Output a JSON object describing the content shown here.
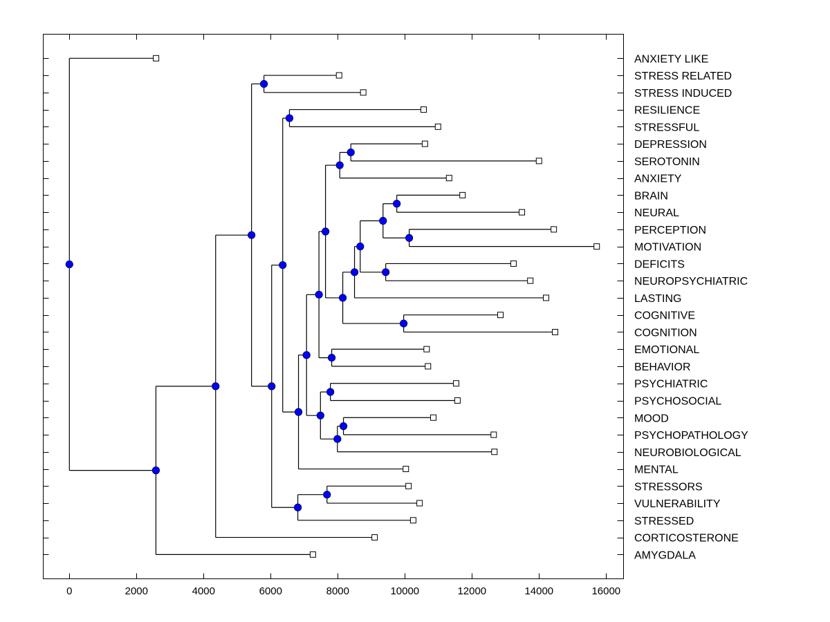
{
  "chart_data": {
    "type": "dendrogram",
    "title": "",
    "xlabel": "",
    "ylabel": "",
    "xlim": [
      -800,
      16500
    ],
    "xticks": [
      0,
      2000,
      4000,
      6000,
      8000,
      10000,
      12000,
      14000,
      16000
    ],
    "xtick_labels": [
      "0",
      "2000",
      "4000",
      "6000",
      "8000",
      "10000",
      "12000",
      "14000",
      "16000"
    ],
    "grid": false,
    "legend": "none",
    "node_color": "#0000ff",
    "leaf_marker": "open-square",
    "leaves": [
      {
        "id": "L0",
        "label": "ANXIETY LIKE",
        "x": 2584
      },
      {
        "id": "L1",
        "label": "STRESS RELATED",
        "x": 8040
      },
      {
        "id": "L2",
        "label": "STRESS INDUCED",
        "x": 8760
      },
      {
        "id": "L3",
        "label": "RESILIENCE",
        "x": 10560
      },
      {
        "id": "L4",
        "label": "STRESSFUL",
        "x": 10990
      },
      {
        "id": "L5",
        "label": "DEPRESSION",
        "x": 10600
      },
      {
        "id": "L6",
        "label": "SEROTONIN",
        "x": 14000
      },
      {
        "id": "L7",
        "label": "ANXIETY",
        "x": 11320
      },
      {
        "id": "L8",
        "label": "BRAIN",
        "x": 11720
      },
      {
        "id": "L9",
        "label": "NEURAL",
        "x": 13490
      },
      {
        "id": "L10",
        "label": "PERCEPTION",
        "x": 14440
      },
      {
        "id": "L11",
        "label": "MOTIVATION",
        "x": 15720
      },
      {
        "id": "L12",
        "label": "DEFICITS",
        "x": 13240
      },
      {
        "id": "L13",
        "label": "NEUROPSYCHIATRIC",
        "x": 13740
      },
      {
        "id": "L14",
        "label": "LASTING",
        "x": 14210
      },
      {
        "id": "L15",
        "label": "COGNITIVE",
        "x": 12850
      },
      {
        "id": "L16",
        "label": "COGNITION",
        "x": 14480
      },
      {
        "id": "L17",
        "label": "EMOTIONAL",
        "x": 10650
      },
      {
        "id": "L18",
        "label": "BEHAVIOR",
        "x": 10690
      },
      {
        "id": "L19",
        "label": "PSYCHIATRIC",
        "x": 11530
      },
      {
        "id": "L20",
        "label": "PSYCHOSOCIAL",
        "x": 11570
      },
      {
        "id": "L21",
        "label": "MOOD",
        "x": 10850
      },
      {
        "id": "L22",
        "label": "PSYCHOPATHOLOGY",
        "x": 12650
      },
      {
        "id": "L23",
        "label": "NEUROBIOLOGICAL",
        "x": 12670
      },
      {
        "id": "L24",
        "label": "MENTAL",
        "x": 10030
      },
      {
        "id": "L25",
        "label": "STRESSORS",
        "x": 10110
      },
      {
        "id": "L26",
        "label": "VULNERABILITY",
        "x": 10440
      },
      {
        "id": "L27",
        "label": "STRESSED",
        "x": 10250
      },
      {
        "id": "L28",
        "label": "CORTICOSTERONE",
        "x": 9100
      },
      {
        "id": "L29",
        "label": "AMYGDALA",
        "x": 7260
      }
    ],
    "nodes": [
      {
        "id": "N_root",
        "x": 0,
        "children": [
          "L0",
          "N_a"
        ]
      },
      {
        "id": "N_a",
        "x": 2580,
        "children": [
          "N_b",
          "L29"
        ]
      },
      {
        "id": "N_b",
        "x": 4360,
        "children": [
          "N_c",
          "L28"
        ]
      },
      {
        "id": "N_c",
        "x": 5430,
        "children": [
          "N_sr",
          "N_d"
        ]
      },
      {
        "id": "N_sr",
        "x": 5800,
        "children": [
          "L1",
          "L2"
        ]
      },
      {
        "id": "N_d",
        "x": 6030,
        "children": [
          "N_e",
          "N_st"
        ]
      },
      {
        "id": "N_st",
        "x": 6810,
        "children": [
          "N_sv",
          "L27"
        ]
      },
      {
        "id": "N_sv",
        "x": 7680,
        "children": [
          "L25",
          "L26"
        ]
      },
      {
        "id": "N_e",
        "x": 6360,
        "children": [
          "N_rs",
          "N_f"
        ]
      },
      {
        "id": "N_rs",
        "x": 6560,
        "children": [
          "L3",
          "L4"
        ]
      },
      {
        "id": "N_f",
        "x": 6830,
        "children": [
          "N_g",
          "L24"
        ]
      },
      {
        "id": "N_g",
        "x": 7070,
        "children": [
          "N_h",
          "N_p"
        ]
      },
      {
        "id": "N_h",
        "x": 7440,
        "children": [
          "N_i",
          "N_eb"
        ]
      },
      {
        "id": "N_eb",
        "x": 7820,
        "children": [
          "L17",
          "L18"
        ]
      },
      {
        "id": "N_i",
        "x": 7635,
        "children": [
          "N_dsa",
          "N_j"
        ]
      },
      {
        "id": "N_dsa",
        "x": 8060,
        "children": [
          "N_ds",
          "L7"
        ]
      },
      {
        "id": "N_ds",
        "x": 8390,
        "children": [
          "L5",
          "L6"
        ]
      },
      {
        "id": "N_j",
        "x": 8150,
        "children": [
          "N_k",
          "N_cog"
        ]
      },
      {
        "id": "N_cog",
        "x": 9965,
        "children": [
          "L15",
          "L16"
        ]
      },
      {
        "id": "N_k",
        "x": 8500,
        "children": [
          "N_l",
          "L14"
        ]
      },
      {
        "id": "N_l",
        "x": 8670,
        "children": [
          "N_m",
          "N_dn"
        ]
      },
      {
        "id": "N_dn",
        "x": 9430,
        "children": [
          "L12",
          "L13"
        ]
      },
      {
        "id": "N_m",
        "x": 9350,
        "children": [
          "N_bn",
          "N_pm"
        ]
      },
      {
        "id": "N_bn",
        "x": 9760,
        "children": [
          "L8",
          "L9"
        ]
      },
      {
        "id": "N_pm",
        "x": 10130,
        "children": [
          "L10",
          "L11"
        ]
      },
      {
        "id": "N_p",
        "x": 7485,
        "children": [
          "N_pp",
          "N_q"
        ]
      },
      {
        "id": "N_pp",
        "x": 7780,
        "children": [
          "L19",
          "L20"
        ]
      },
      {
        "id": "N_q",
        "x": 7990,
        "children": [
          "N_mp",
          "L23"
        ]
      },
      {
        "id": "N_mp",
        "x": 8170,
        "children": [
          "L21",
          "L22"
        ]
      }
    ]
  }
}
